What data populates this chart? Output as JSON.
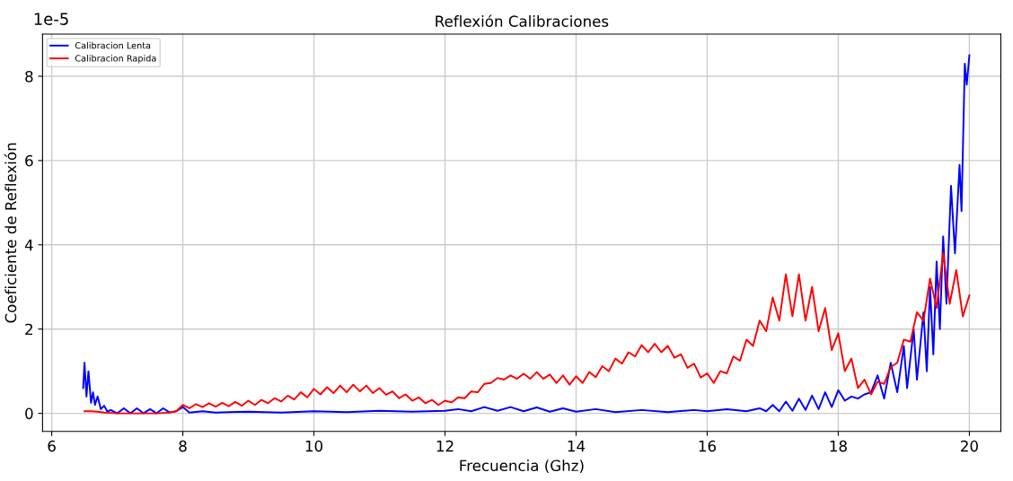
{
  "chart_data": {
    "type": "line",
    "title": "Reflexión Calibraciones",
    "xlabel": "Frecuencia (Ghz)",
    "ylabel": "Coeficiente de Reflexión",
    "annotations": [
      "1e-5"
    ],
    "xlim": [
      5.86,
      20.48
    ],
    "xticks": [
      6,
      8,
      10,
      12,
      14,
      16,
      18,
      20
    ],
    "ylim": [
      -0.43,
      9.0
    ],
    "yticks": [
      0,
      2,
      4,
      6,
      8
    ],
    "grid": true,
    "legend": "top left",
    "line_style": "solid",
    "marker": "none",
    "series": [
      {
        "name": "Calibracion Lenta",
        "color": "#0000ff",
        "x": [
          6.48,
          6.5,
          6.53,
          6.56,
          6.6,
          6.63,
          6.66,
          6.7,
          6.75,
          6.8,
          6.85,
          6.9,
          7.0,
          7.1,
          7.2,
          7.3,
          7.4,
          7.5,
          7.6,
          7.7,
          7.8,
          7.9,
          8.0,
          8.1,
          8.3,
          8.5,
          9.0,
          9.5,
          10.0,
          10.5,
          11.0,
          11.5,
          12.0,
          12.2,
          12.4,
          12.6,
          12.8,
          13.0,
          13.2,
          13.4,
          13.6,
          13.8,
          14.0,
          14.3,
          14.6,
          15.0,
          15.4,
          15.8,
          16.0,
          16.3,
          16.6,
          16.8,
          16.9,
          17.0,
          17.1,
          17.2,
          17.3,
          17.4,
          17.5,
          17.6,
          17.7,
          17.8,
          17.9,
          18.0,
          18.1,
          18.2,
          18.3,
          18.4,
          18.5,
          18.6,
          18.7,
          18.8,
          18.9,
          19.0,
          19.05,
          19.15,
          19.2,
          19.3,
          19.35,
          19.4,
          19.45,
          19.5,
          19.55,
          19.6,
          19.65,
          19.72,
          19.78,
          19.85,
          19.88,
          19.93,
          19.96,
          20.0
        ],
        "values": [
          0.6,
          1.2,
          0.4,
          1.0,
          0.25,
          0.5,
          0.2,
          0.4,
          0.1,
          0.18,
          0.04,
          0.08,
          0.0,
          0.12,
          0.0,
          0.12,
          0.0,
          0.1,
          0.0,
          0.12,
          0.02,
          0.05,
          0.15,
          0.02,
          0.05,
          0.02,
          0.04,
          0.02,
          0.05,
          0.03,
          0.06,
          0.04,
          0.06,
          0.1,
          0.05,
          0.15,
          0.06,
          0.15,
          0.05,
          0.14,
          0.04,
          0.12,
          0.04,
          0.1,
          0.03,
          0.08,
          0.03,
          0.08,
          0.05,
          0.1,
          0.05,
          0.12,
          0.05,
          0.2,
          0.05,
          0.28,
          0.06,
          0.35,
          0.08,
          0.42,
          0.1,
          0.5,
          0.15,
          0.55,
          0.3,
          0.4,
          0.35,
          0.45,
          0.5,
          0.9,
          0.35,
          1.2,
          0.5,
          1.6,
          0.6,
          2.0,
          0.8,
          2.4,
          1.0,
          3.0,
          1.4,
          3.6,
          2.0,
          4.2,
          2.6,
          5.4,
          3.8,
          5.9,
          4.8,
          8.3,
          7.8,
          8.5
        ]
      },
      {
        "name": "Calibracion Rapida",
        "color": "#ff0000",
        "x": [
          6.5,
          6.6,
          6.7,
          6.8,
          6.9,
          7.0,
          7.1,
          7.2,
          7.3,
          7.4,
          7.5,
          7.6,
          7.7,
          7.8,
          7.9,
          8.0,
          8.1,
          8.2,
          8.3,
          8.4,
          8.5,
          8.6,
          8.7,
          8.8,
          8.9,
          9.0,
          9.1,
          9.2,
          9.3,
          9.4,
          9.5,
          9.6,
          9.7,
          9.8,
          9.9,
          10.0,
          10.1,
          10.2,
          10.3,
          10.4,
          10.5,
          10.6,
          10.7,
          10.8,
          10.9,
          11.0,
          11.1,
          11.2,
          11.3,
          11.4,
          11.5,
          11.6,
          11.7,
          11.8,
          11.9,
          12.0,
          12.1,
          12.2,
          12.3,
          12.4,
          12.5,
          12.6,
          12.7,
          12.8,
          12.9,
          13.0,
          13.1,
          13.2,
          13.3,
          13.4,
          13.5,
          13.6,
          13.7,
          13.8,
          13.9,
          14.0,
          14.1,
          14.2,
          14.3,
          14.4,
          14.5,
          14.6,
          14.7,
          14.8,
          14.9,
          15.0,
          15.1,
          15.2,
          15.3,
          15.4,
          15.5,
          15.6,
          15.7,
          15.8,
          15.9,
          16.0,
          16.1,
          16.2,
          16.3,
          16.4,
          16.5,
          16.6,
          16.7,
          16.8,
          16.9,
          17.0,
          17.1,
          17.2,
          17.3,
          17.4,
          17.5,
          17.6,
          17.7,
          17.8,
          17.9,
          18.0,
          18.1,
          18.2,
          18.3,
          18.4,
          18.5,
          18.6,
          18.7,
          18.8,
          18.9,
          19.0,
          19.1,
          19.2,
          19.3,
          19.4,
          19.5,
          19.6,
          19.7,
          19.8,
          19.9,
          20.0
        ],
        "values": [
          0.05,
          0.05,
          0.04,
          0.02,
          0.01,
          0.0,
          0.0,
          0.0,
          0.0,
          0.0,
          0.0,
          0.0,
          0.01,
          0.02,
          0.05,
          0.2,
          0.12,
          0.22,
          0.15,
          0.24,
          0.16,
          0.25,
          0.17,
          0.27,
          0.18,
          0.3,
          0.2,
          0.32,
          0.24,
          0.36,
          0.28,
          0.42,
          0.33,
          0.5,
          0.38,
          0.58,
          0.45,
          0.62,
          0.48,
          0.66,
          0.5,
          0.68,
          0.52,
          0.66,
          0.48,
          0.6,
          0.44,
          0.52,
          0.36,
          0.45,
          0.3,
          0.38,
          0.24,
          0.32,
          0.2,
          0.3,
          0.26,
          0.38,
          0.36,
          0.52,
          0.5,
          0.7,
          0.72,
          0.84,
          0.8,
          0.9,
          0.82,
          0.94,
          0.82,
          0.98,
          0.82,
          0.92,
          0.72,
          0.9,
          0.68,
          0.88,
          0.72,
          0.98,
          0.86,
          1.12,
          1.0,
          1.3,
          1.18,
          1.45,
          1.35,
          1.62,
          1.45,
          1.65,
          1.45,
          1.6,
          1.32,
          1.4,
          1.08,
          1.18,
          0.85,
          0.95,
          0.72,
          1.0,
          0.95,
          1.35,
          1.25,
          1.75,
          1.6,
          2.2,
          1.95,
          2.75,
          2.2,
          3.3,
          2.3,
          3.3,
          2.2,
          3.0,
          1.95,
          2.5,
          1.5,
          1.9,
          1.0,
          1.3,
          0.6,
          0.8,
          0.45,
          0.75,
          0.7,
          1.1,
          1.2,
          1.75,
          1.7,
          2.4,
          2.2,
          3.2,
          2.5,
          3.8,
          2.6,
          3.4,
          2.3,
          2.8
        ]
      }
    ]
  }
}
